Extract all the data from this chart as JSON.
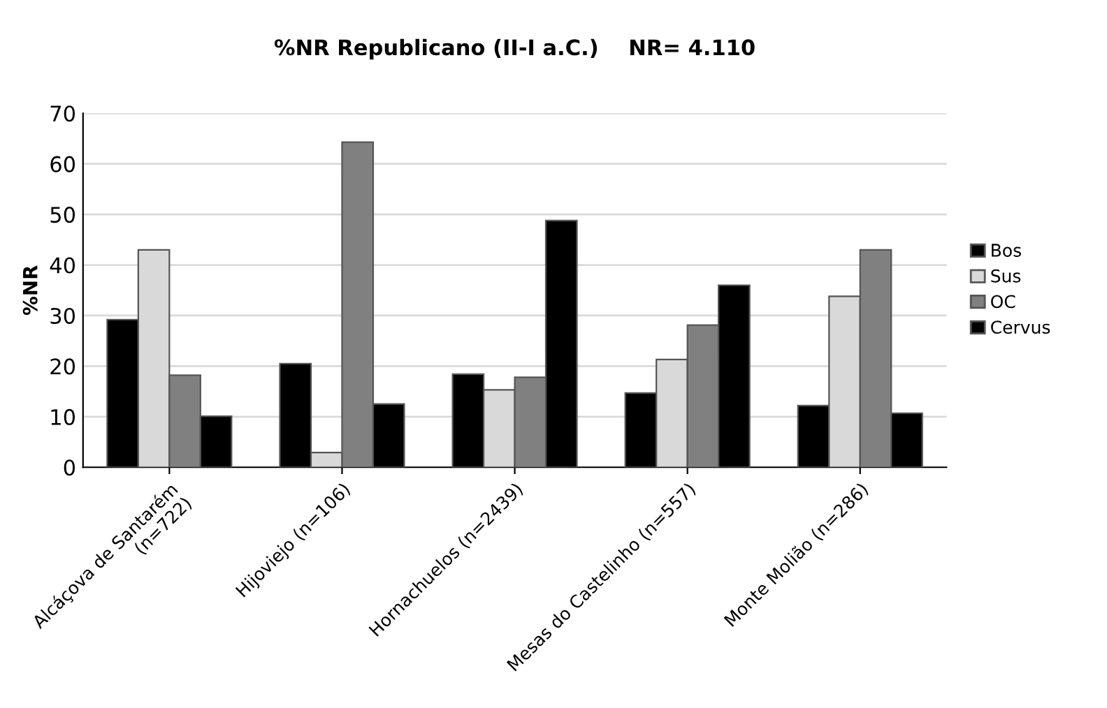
{
  "chart_data": {
    "type": "bar",
    "title": "%NR Republicano (II-I a.C.)    NR= 4.110",
    "ylabel": "%NR",
    "categories": [
      "Alcáçova de Santarém\n(n=722)",
      "Hijoviejo (n=106)",
      "Hornachuelos (n=2439)",
      "Mesas do Castelinho (n=557)",
      "Monte Molião (n=286)"
    ],
    "series": [
      {
        "name": "Bos",
        "color": "#000000",
        "values": [
          29.2,
          20.5,
          18.4,
          14.7,
          12.2
        ]
      },
      {
        "name": "Sus",
        "color": "#d9d9d9",
        "values": [
          43,
          2.9,
          15.3,
          21.3,
          33.8
        ]
      },
      {
        "name": "OC",
        "color": "#808080",
        "values": [
          18.2,
          64.3,
          17.8,
          28.1,
          43
        ]
      },
      {
        "name": "Cervus",
        "color": "#000000",
        "values": [
          10.1,
          12.5,
          48.8,
          36,
          10.7
        ]
      }
    ],
    "ylim": [
      0,
      70
    ],
    "yticks": [
      0,
      10,
      20,
      30,
      40,
      50,
      60,
      70
    ],
    "grid": "y",
    "legend": "right"
  }
}
